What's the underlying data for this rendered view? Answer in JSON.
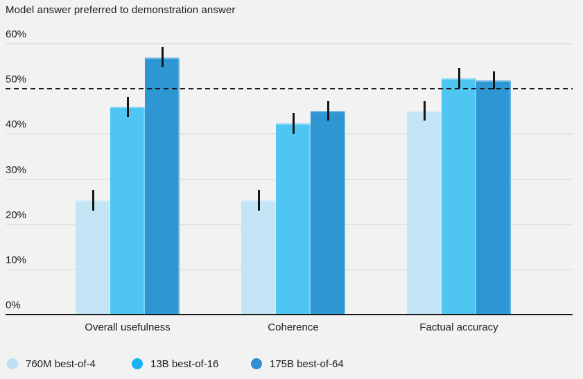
{
  "chart_data": {
    "type": "bar",
    "title": "Model answer preferred to demonstration answer",
    "categories": [
      "Overall usefulness",
      "Coherence",
      "Factual accuracy"
    ],
    "series": [
      {
        "name": "760M best-of-4",
        "color": "#c3e4f5",
        "dot_color": "#bfe0f2",
        "values": [
          25.3,
          25.3,
          45.1
        ],
        "errors": [
          2.3,
          2.3,
          2.2
        ]
      },
      {
        "name": "13B best-of-16",
        "color": "#4fc6f1",
        "dot_color": "#16b4f4",
        "values": [
          46.0,
          42.3,
          52.4
        ],
        "errors": [
          2.2,
          2.3,
          2.2
        ]
      },
      {
        "name": "175B best-of-64",
        "color": "#2e96d3",
        "dot_color": "#2e90d2",
        "values": [
          57.0,
          45.1,
          51.8
        ],
        "errors": [
          2.2,
          2.2,
          2.0
        ]
      }
    ],
    "ylim": [
      0,
      60
    ],
    "yticks": [
      0,
      10,
      20,
      30,
      40,
      50,
      60
    ],
    "ytick_suffix": "%",
    "reference_line": 50,
    "grid": true,
    "error_bars": true,
    "legend_position": "bottom"
  },
  "colors": {
    "background": "#f2f2f2",
    "gridline": "#e3e3e3",
    "axis": "#1a1a1a",
    "reference_line": "#1a1a1a",
    "error_bar": "#141414",
    "text": "#1c1c1c"
  }
}
